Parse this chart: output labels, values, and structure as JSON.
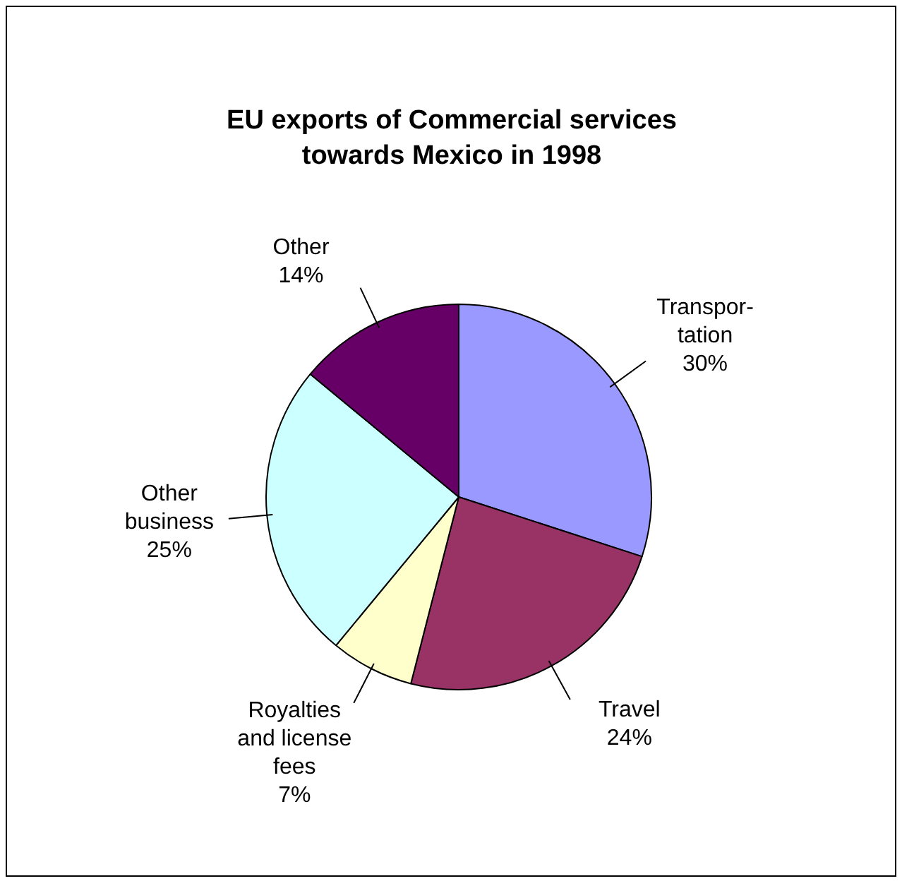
{
  "chart_data": {
    "type": "pie",
    "title": "EU exports of Commercial services towards Mexico in 1998",
    "categories": [
      "Transpor-tation",
      "Travel",
      "Royalties and license fees",
      "Other business",
      "Other"
    ],
    "values": [
      30,
      24,
      7,
      25,
      14
    ],
    "value_labels": [
      "30%",
      "24%",
      "7%",
      "25%",
      "14%"
    ],
    "colors": [
      "#9999ff",
      "#993366",
      "#ffffcc",
      "#ccffff",
      "#660066"
    ],
    "legend": false
  }
}
